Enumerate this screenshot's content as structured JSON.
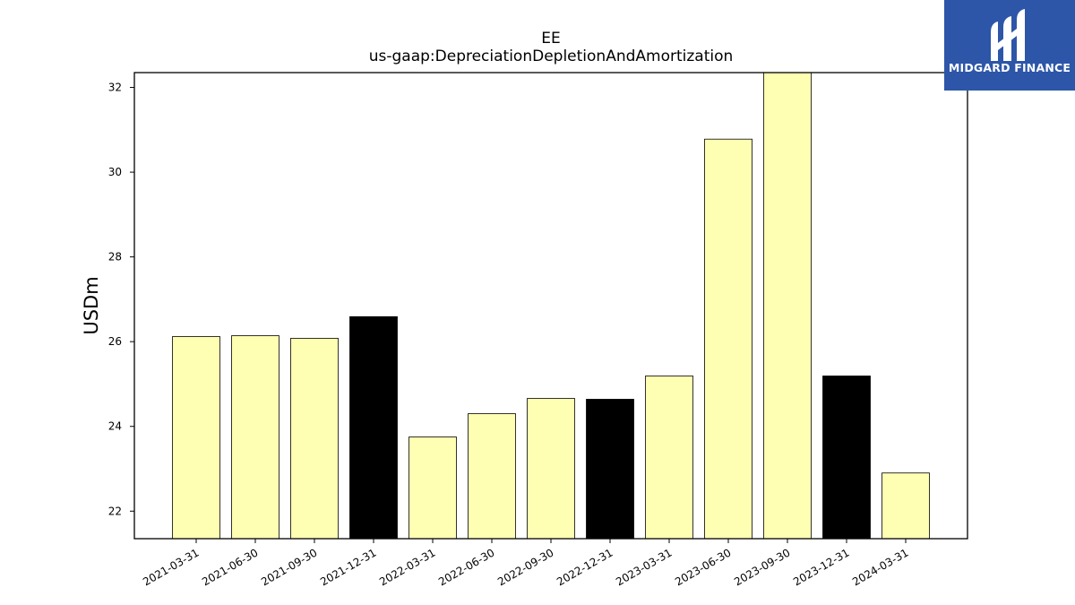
{
  "logo": {
    "text": "MIDGARD FINANCE"
  },
  "chart_data": {
    "type": "bar",
    "title": "EE",
    "subtitle": "us-gaap:DepreciationDepletionAndAmortization",
    "xlabel": "",
    "ylabel": "USDm",
    "ylim": [
      21.35,
      32.35
    ],
    "yticks": [
      22,
      24,
      26,
      28,
      30,
      32
    ],
    "grid": false,
    "categories": [
      "2021-03-31",
      "2021-06-30",
      "2021-09-30",
      "2021-12-31",
      "2022-03-31",
      "2022-06-30",
      "2022-09-30",
      "2022-12-31",
      "2023-03-31",
      "2023-06-30",
      "2023-09-30",
      "2023-12-31",
      "2024-03-31"
    ],
    "values": [
      26.12,
      26.14,
      26.08,
      26.59,
      23.75,
      24.3,
      24.66,
      24.64,
      25.19,
      30.78,
      32.35,
      25.19,
      22.9
    ],
    "bar_colors": [
      "#ffffb3",
      "#ffffb3",
      "#ffffb3",
      "#000000",
      "#ffffb3",
      "#ffffb3",
      "#ffffb3",
      "#000000",
      "#ffffb3",
      "#ffffb3",
      "#ffffb3",
      "#000000",
      "#ffffb3"
    ]
  }
}
